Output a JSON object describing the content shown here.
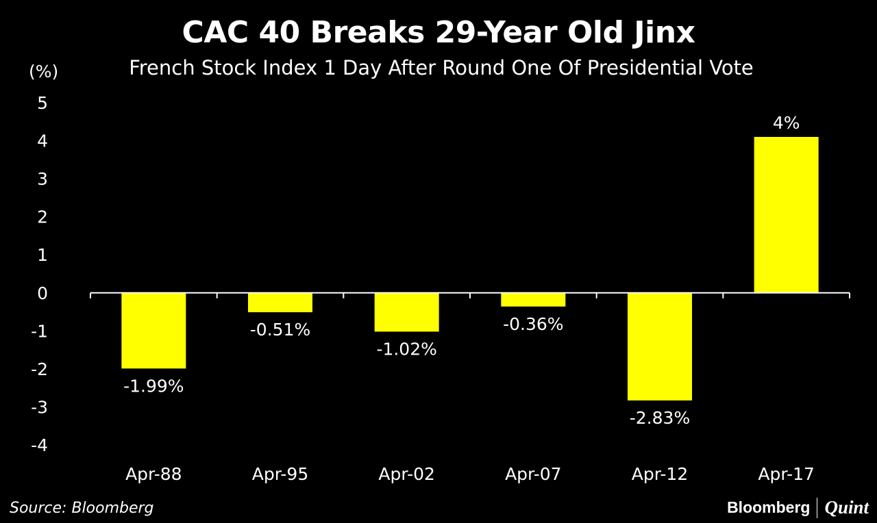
{
  "chart_data": {
    "type": "bar",
    "title": "CAC 40 Breaks 29-Year Old Jinx",
    "subtitle": "French Stock Index 1 Day After Round One Of Presidential Vote",
    "ylabel": "(%)",
    "xlabel": "",
    "ylim": [
      -4,
      5
    ],
    "yticks": [
      "5",
      "4",
      "3",
      "2",
      "1",
      "0",
      "-1",
      "-2",
      "-3",
      "-4"
    ],
    "ytick_values": [
      5,
      4,
      3,
      2,
      1,
      0,
      -1,
      -2,
      -3,
      -4
    ],
    "categories": [
      "Apr-88",
      "Apr-95",
      "Apr-02",
      "Apr-07",
      "Apr-12",
      "Apr-17"
    ],
    "values": [
      -1.99,
      -0.51,
      -1.02,
      -0.36,
      -2.83,
      4.1
    ],
    "data_labels": [
      "-1.99%",
      "-0.51%",
      "-1.02%",
      "-0.36%",
      "-2.83%",
      "4%"
    ],
    "grid": false,
    "legend": "none"
  },
  "colors": {
    "background": "#000000",
    "bar": "#ffff00",
    "text": "#ffffff",
    "axis": "#ffffff"
  },
  "footer": {
    "source": "Source: Bloomberg",
    "brand_primary": "Bloomberg",
    "brand_secondary": "Quint"
  }
}
